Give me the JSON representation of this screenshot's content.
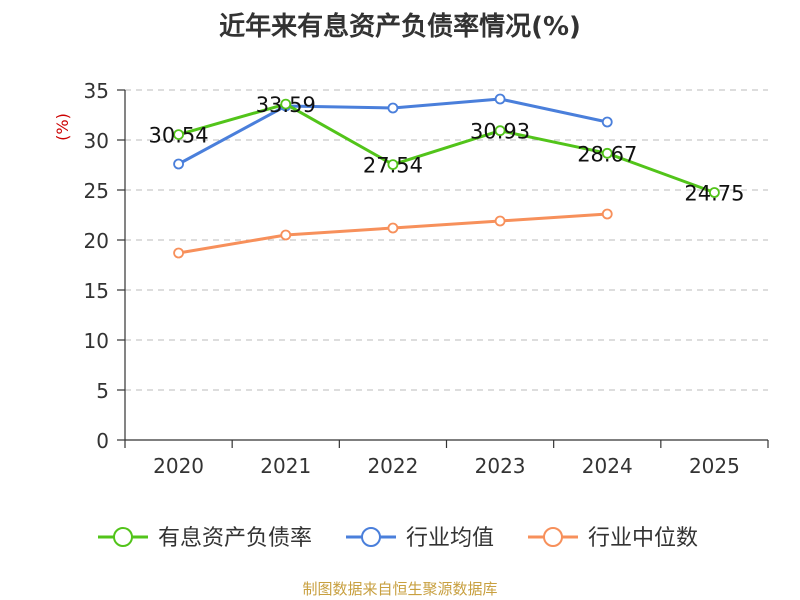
{
  "chart_data": {
    "type": "line",
    "title": "近年来有息资产负债率情况(%)",
    "ylabel": "(%)",
    "xlabel": "",
    "categories": [
      "2020",
      "2021",
      "2022",
      "2023",
      "2024",
      "2025"
    ],
    "ylim": [
      0,
      35
    ],
    "yticks": [
      "0",
      "5",
      "10",
      "15",
      "20",
      "25",
      "30",
      "35"
    ],
    "grid": true,
    "legend_position": "bottom",
    "series": [
      {
        "name": "有息资产负债率",
        "color": "#52c41a",
        "values": [
          30.54,
          33.59,
          27.54,
          30.93,
          28.67,
          24.75
        ],
        "labels": [
          "30.54",
          "33.59",
          "27.54",
          "30.93",
          "28.67",
          "24.75"
        ]
      },
      {
        "name": "行业均值",
        "color": "#4a7fdb",
        "values": [
          27.6,
          33.4,
          33.2,
          34.1,
          31.8,
          null
        ]
      },
      {
        "name": "行业中位数",
        "color": "#f7905b",
        "values": [
          18.7,
          20.5,
          21.2,
          21.9,
          22.6,
          null
        ]
      }
    ]
  },
  "footer": {
    "text": "制图数据来自恒生聚源数据库",
    "color": "#c8a040"
  },
  "axis_color": "#333333",
  "ylabel_color": "#cc0000"
}
